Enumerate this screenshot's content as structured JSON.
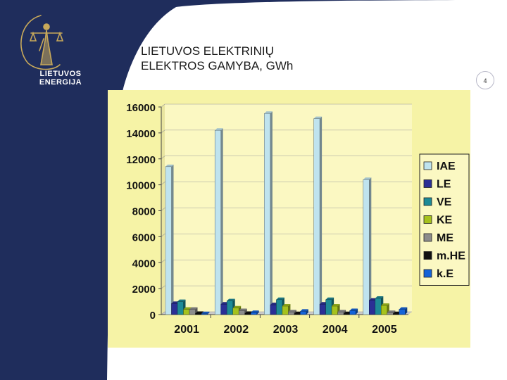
{
  "slide": {
    "title_line1": "LIETUVOS ELEKTRINIŲ",
    "title_line2": "ELEKTROS GAMYBA, GWh",
    "page_number": "4",
    "brand_line1": "LIETUVOS",
    "brand_line2": "ENERGIJA"
  },
  "colors": {
    "navy": "#1f2d5c",
    "chart_bg": "#f6f3a6",
    "plot_bg": "#fbf8c2"
  },
  "chart_data": {
    "type": "bar",
    "title": "",
    "xlabel": "",
    "ylabel": "",
    "ylim": [
      0,
      16000
    ],
    "yticks": [
      "0",
      "2000",
      "4000",
      "6000",
      "8000",
      "10000",
      "12000",
      "14000",
      "16000"
    ],
    "categories": [
      "2001",
      "2002",
      "2003",
      "2004",
      "2005"
    ],
    "legend_position": "right",
    "series": [
      {
        "name": "IAE",
        "color": "#bfe3ee",
        "values": [
          11400,
          14200,
          15500,
          15100,
          10400
        ]
      },
      {
        "name": "LE",
        "color": "#2b2f95",
        "values": [
          850,
          800,
          750,
          800,
          1100
        ]
      },
      {
        "name": "VE",
        "color": "#1d8a96",
        "values": [
          1000,
          1050,
          1150,
          1150,
          1250
        ]
      },
      {
        "name": "KE",
        "color": "#a6c21c",
        "values": [
          400,
          500,
          650,
          650,
          700
        ]
      },
      {
        "name": "ME",
        "color": "#8c8c8c",
        "values": [
          400,
          300,
          200,
          200,
          150
        ]
      },
      {
        "name": "m.HE",
        "color": "#111111",
        "values": [
          80,
          80,
          60,
          60,
          60
        ]
      },
      {
        "name": "k.E",
        "color": "#1463d8",
        "values": [
          60,
          150,
          250,
          300,
          400
        ]
      }
    ]
  }
}
